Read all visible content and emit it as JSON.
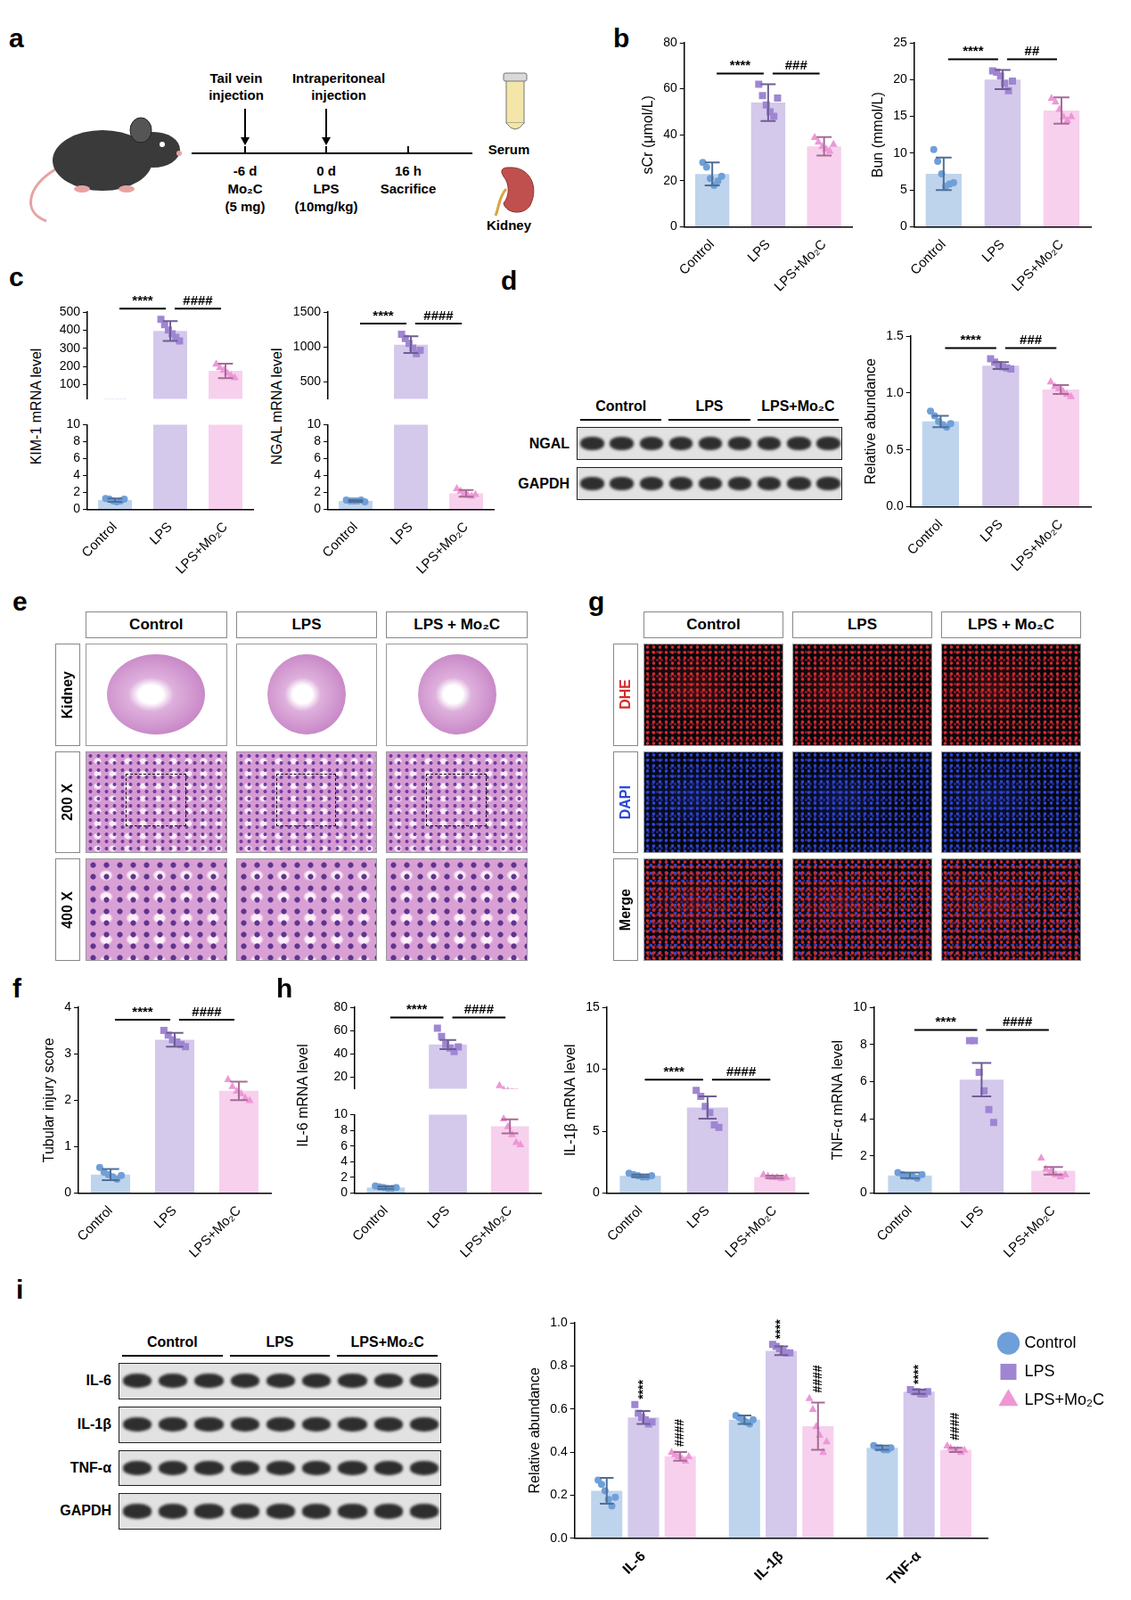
{
  "schematic": {
    "panel": "a",
    "events": [
      {
        "label": "Tail vein injection",
        "time": "-6 d",
        "agent": "Mo₂C",
        "dose": "(5 mg)"
      },
      {
        "label": "Intraperitoneal injection",
        "time": "0 d",
        "agent": "LPS",
        "dose": "(10mg/kg)"
      },
      {
        "time": "16 h",
        "agent": "Sacrifice"
      }
    ],
    "samples": [
      "Serum",
      "Kidney"
    ]
  },
  "blots": [
    {
      "panel": "d",
      "groups": [
        "Control",
        "LPS",
        "LPS+Mo₂C"
      ],
      "lanes_per_group": 3,
      "rows": [
        "NGAL",
        "GAPDH"
      ]
    },
    {
      "panel": "i",
      "groups": [
        "Control",
        "LPS",
        "LPS+Mo₂C"
      ],
      "lanes_per_group": 3,
      "rows": [
        "IL-6",
        "IL-1β",
        "TNF-α",
        "GAPDH"
      ]
    }
  ],
  "histology": {
    "panel": "e",
    "columns": [
      "Control",
      "LPS",
      "LPS + Mo₂C"
    ],
    "rows": [
      "Kidney",
      "200 X",
      "400 X"
    ]
  },
  "fluorescence": {
    "panel": "g",
    "columns": [
      "Control",
      "LPS",
      "LPS + Mo₂C"
    ],
    "rows": [
      {
        "label": "DHE",
        "color": "#d42a2a"
      },
      {
        "label": "DAPI",
        "color": "#2b45d6"
      },
      {
        "label": "Merge",
        "color": "#000000"
      }
    ]
  },
  "chart_data": [
    {
      "type": "bar",
      "panel": "b",
      "y_label": "sCr (μmol/L)",
      "categories": [
        "Control",
        "LPS",
        "LPS+Mo₂C"
      ],
      "values": [
        23,
        54,
        35
      ],
      "errors": [
        5,
        8,
        4
      ],
      "points": [
        [
          28,
          26,
          21,
          18,
          20,
          22
        ],
        [
          62,
          57,
          53,
          50,
          48,
          56
        ],
        [
          39,
          37,
          35,
          34,
          33,
          36
        ]
      ],
      "colors": [
        "#6f9fd8",
        "#9f86d3",
        "#ee97d6"
      ],
      "marker": [
        "circle",
        "square",
        "triangle"
      ],
      "ylim": [
        0,
        80
      ],
      "yticks": [
        0,
        20,
        40,
        60,
        80
      ],
      "grid": false,
      "significance": [
        {
          "from": 0,
          "to": 1,
          "label": "****"
        },
        {
          "from": 1,
          "to": 2,
          "label": "###"
        }
      ]
    },
    {
      "type": "bar",
      "panel": "b",
      "y_label": "Bun (mmol/L)",
      "categories": [
        "Control",
        "LPS",
        "LPS+Mo₂C"
      ],
      "values": [
        7.2,
        20.0,
        15.8
      ],
      "errors": [
        2.2,
        1.3,
        1.8
      ],
      "points": [
        [
          10.5,
          8.9,
          7.2,
          5.5,
          5.8,
          6.0
        ],
        [
          21.2,
          21.0,
          20.5,
          19.5,
          18.5,
          19.8
        ],
        [
          17.5,
          17.0,
          16.0,
          15.0,
          14.5,
          15.0
        ]
      ],
      "colors": [
        "#6f9fd8",
        "#9f86d3",
        "#ee97d6"
      ],
      "marker": [
        "circle",
        "square",
        "triangle"
      ],
      "ylim": [
        0,
        25
      ],
      "yticks": [
        0,
        5,
        10,
        15,
        20,
        25
      ],
      "grid": false,
      "significance": [
        {
          "from": 0,
          "to": 1,
          "label": "****"
        },
        {
          "from": 1,
          "to": 2,
          "label": "##"
        }
      ]
    },
    {
      "type": "bar",
      "panel": "c",
      "y_label": "KIM-1 mRNA level",
      "categories": [
        "Control",
        "LPS",
        "LPS+Mo₂C"
      ],
      "values": [
        1.1,
        395,
        175
      ],
      "errors": [
        0.2,
        55,
        40
      ],
      "points": [
        [
          1.3,
          1.2,
          1.0,
          0.9,
          1.0,
          1.2
        ],
        [
          460,
          430,
          400,
          380,
          360,
          340
        ],
        [
          215,
          195,
          180,
          165,
          150,
          140
        ]
      ],
      "colors": [
        "#6f9fd8",
        "#9f86d3",
        "#ee97d6"
      ],
      "marker": [
        "circle",
        "square",
        "triangle"
      ],
      "y_segments": [
        {
          "ylim": [
            0,
            10
          ],
          "yticks": [
            0,
            2,
            4,
            6,
            8,
            10
          ]
        },
        {
          "ylim": [
            20,
            500
          ],
          "yticks": [
            100,
            200,
            300,
            400,
            500
          ]
        }
      ],
      "grid": false,
      "significance": [
        {
          "from": 0,
          "to": 1,
          "label": "****"
        },
        {
          "from": 1,
          "to": 2,
          "label": "####"
        }
      ]
    },
    {
      "type": "bar",
      "panel": "c",
      "y_label": "NGAL mRNA level",
      "categories": [
        "Control",
        "LPS",
        "LPS+Mo₂C"
      ],
      "values": [
        1.0,
        1030,
        1.9
      ],
      "errors": [
        0.1,
        120,
        0.4
      ],
      "points": [
        [
          1.1,
          1.0,
          1.0,
          1.0,
          1.1,
          0.9
        ],
        [
          1180,
          1120,
          1050,
          980,
          900,
          950
        ],
        [
          2.5,
          2.2,
          1.9,
          1.7,
          1.6,
          1.8
        ]
      ],
      "colors": [
        "#6f9fd8",
        "#9f86d3",
        "#ee97d6"
      ],
      "marker": [
        "circle",
        "square",
        "triangle"
      ],
      "y_segments": [
        {
          "ylim": [
            0,
            10
          ],
          "yticks": [
            0,
            2,
            4,
            6,
            8,
            10
          ]
        },
        {
          "ylim": [
            250,
            1500
          ],
          "yticks": [
            500,
            1000,
            1500
          ]
        }
      ],
      "grid": false,
      "significance": [
        {
          "from": 0,
          "to": 1,
          "label": "****"
        },
        {
          "from": 1,
          "to": 2,
          "label": "####"
        }
      ]
    },
    {
      "type": "bar",
      "panel": "d",
      "y_label": "Relative abundance",
      "categories": [
        "Control",
        "LPS",
        "LPS+Mo₂C"
      ],
      "values": [
        0.75,
        1.24,
        1.03
      ],
      "errors": [
        0.05,
        0.03,
        0.04
      ],
      "points": [
        [
          0.84,
          0.8,
          0.75,
          0.72,
          0.7,
          0.73
        ],
        [
          1.3,
          1.27,
          1.25,
          1.23,
          1.22,
          1.21
        ],
        [
          1.1,
          1.06,
          1.04,
          1.02,
          0.99,
          0.97
        ]
      ],
      "colors": [
        "#6f9fd8",
        "#9f86d3",
        "#ee97d6"
      ],
      "marker": [
        "circle",
        "square",
        "triangle"
      ],
      "ylim": [
        0,
        1.5
      ],
      "yticks": [
        {
          "value": 0,
          "label": "0.0"
        },
        0.5,
        {
          "value": 1,
          "label": "1.0"
        },
        1.5
      ],
      "grid": false,
      "significance": [
        {
          "from": 0,
          "to": 1,
          "label": "****"
        },
        {
          "from": 1,
          "to": 2,
          "label": "###"
        }
      ]
    },
    {
      "type": "bar",
      "panel": "f",
      "y_label": "Tubular injury score",
      "categories": [
        "Control",
        "LPS",
        "LPS+Mo₂C"
      ],
      "values": [
        0.4,
        3.3,
        2.2
      ],
      "errors": [
        0.12,
        0.15,
        0.2
      ],
      "points": [
        [
          0.55,
          0.45,
          0.4,
          0.35,
          0.3,
          0.38
        ],
        [
          3.5,
          3.4,
          3.3,
          3.25,
          3.2,
          3.15
        ],
        [
          2.45,
          2.3,
          2.2,
          2.15,
          2.05,
          2.0
        ]
      ],
      "colors": [
        "#6f9fd8",
        "#9f86d3",
        "#ee97d6"
      ],
      "marker": [
        "circle",
        "square",
        "triangle"
      ],
      "ylim": [
        0,
        4
      ],
      "yticks": [
        0,
        1,
        2,
        3,
        4
      ],
      "grid": false,
      "significance": [
        {
          "from": 0,
          "to": 1,
          "label": "****"
        },
        {
          "from": 1,
          "to": 2,
          "label": "####"
        }
      ]
    },
    {
      "type": "bar",
      "panel": "h",
      "y_label": "IL-6 mRNA level",
      "categories": [
        "Control",
        "LPS",
        "LPS+Mo₂C"
      ],
      "values": [
        0.7,
        48,
        8.5
      ],
      "errors": [
        0.15,
        4,
        0.9
      ],
      "points": [
        [
          0.9,
          0.8,
          0.7,
          0.6,
          0.6,
          0.7
        ],
        [
          62,
          55,
          48,
          45,
          42,
          46
        ],
        [
          13,
          9.5,
          8.5,
          7.5,
          6.5,
          6.2
        ]
      ],
      "colors": [
        "#6f9fd8",
        "#9f86d3",
        "#ee97d6"
      ],
      "marker": [
        "circle",
        "square",
        "triangle"
      ],
      "y_segments": [
        {
          "ylim": [
            0,
            10
          ],
          "yticks": [
            0,
            2,
            4,
            6,
            8,
            10
          ]
        },
        {
          "ylim": [
            10,
            80
          ],
          "yticks": [
            20,
            40,
            60,
            80
          ]
        }
      ],
      "grid": false,
      "significance": [
        {
          "from": 0,
          "to": 1,
          "label": "****"
        },
        {
          "from": 1,
          "to": 2,
          "label": "####"
        }
      ]
    },
    {
      "type": "bar",
      "panel": "h",
      "y_label": "IL-1β mRNA level",
      "categories": [
        "Control",
        "LPS",
        "LPS+Mo₂C"
      ],
      "values": [
        1.4,
        6.9,
        1.3
      ],
      "errors": [
        0.1,
        0.9,
        0.1
      ],
      "points": [
        [
          1.6,
          1.5,
          1.4,
          1.3,
          1.3,
          1.4
        ],
        [
          8.3,
          7.8,
          7.0,
          6.5,
          5.5,
          5.3
        ],
        [
          1.5,
          1.4,
          1.3,
          1.3,
          1.2,
          1.3
        ]
      ],
      "colors": [
        "#6f9fd8",
        "#9f86d3",
        "#ee97d6"
      ],
      "marker": [
        "circle",
        "square",
        "triangle"
      ],
      "ylim": [
        0,
        15
      ],
      "yticks": [
        0,
        5,
        10,
        15
      ],
      "grid": false,
      "significance": [
        {
          "from": 0,
          "to": 1,
          "label": "****"
        },
        {
          "from": 1,
          "to": 2,
          "label": "####"
        }
      ]
    },
    {
      "type": "bar",
      "panel": "h",
      "y_label": "TNF-α mRNA level",
      "categories": [
        "Control",
        "LPS",
        "LPS+Mo₂C"
      ],
      "values": [
        0.95,
        6.1,
        1.2
      ],
      "errors": [
        0.15,
        0.9,
        0.2
      ],
      "points": [
        [
          1.1,
          1.0,
          0.9,
          0.9,
          0.8,
          1.0
        ],
        [
          8.2,
          8.2,
          6.5,
          5.5,
          4.5,
          3.8
        ],
        [
          1.9,
          1.3,
          1.2,
          1.0,
          0.9,
          1.0
        ]
      ],
      "colors": [
        "#6f9fd8",
        "#9f86d3",
        "#ee97d6"
      ],
      "marker": [
        "circle",
        "square",
        "triangle"
      ],
      "ylim": [
        0,
        10
      ],
      "yticks": [
        0,
        2,
        4,
        6,
        8,
        10
      ],
      "grid": false,
      "significance": [
        {
          "from": 0,
          "to": 1,
          "label": "****"
        },
        {
          "from": 1,
          "to": 2,
          "label": "####"
        }
      ]
    },
    {
      "type": "bar",
      "panel": "i",
      "y_label": "Relative abundance",
      "categories": [
        "IL-6",
        "IL-1β",
        "TNF-α"
      ],
      "series": [
        {
          "name": "Control",
          "color": "#6f9fd8",
          "marker": "circle",
          "values": [
            0.22,
            0.55,
            0.42
          ],
          "errors": [
            0.06,
            0.02,
            0.01
          ],
          "points": [
            [
              0.27,
              0.25,
              0.22,
              0.18,
              0.15,
              0.19
            ],
            [
              0.57,
              0.56,
              0.55,
              0.54,
              0.53,
              0.55
            ],
            [
              0.43,
              0.42,
              0.42,
              0.41,
              0.41,
              0.42
            ]
          ]
        },
        {
          "name": "LPS",
          "color": "#9f86d3",
          "marker": "square",
          "values": [
            0.56,
            0.87,
            0.68
          ],
          "errors": [
            0.03,
            0.02,
            0.01
          ],
          "points": [
            [
              0.62,
              0.58,
              0.56,
              0.55,
              0.53,
              0.54
            ],
            [
              0.9,
              0.89,
              0.88,
              0.87,
              0.86,
              0.86
            ],
            [
              0.69,
              0.68,
              0.68,
              0.67,
              0.67,
              0.68
            ]
          ],
          "significance": [
            "****",
            "****",
            "****"
          ]
        },
        {
          "name": "LPS+Mo₂C",
          "color": "#ee97d6",
          "marker": "triangle",
          "values": [
            0.38,
            0.52,
            0.41
          ],
          "errors": [
            0.02,
            0.11,
            0.01
          ],
          "points": [
            [
              0.4,
              0.39,
              0.38,
              0.37,
              0.36,
              0.38
            ],
            [
              0.65,
              0.6,
              0.52,
              0.48,
              0.4,
              0.45
            ],
            [
              0.43,
              0.42,
              0.41,
              0.41,
              0.4,
              0.41
            ]
          ],
          "significance": [
            "####",
            "####",
            "####"
          ]
        }
      ],
      "ylim": [
        0,
        1
      ],
      "yticks": [
        {
          "value": 0,
          "label": "0.0"
        },
        0.2,
        0.4,
        0.6,
        0.8,
        {
          "value": 1,
          "label": "1.0"
        }
      ],
      "grid": false,
      "legend": "right"
    }
  ]
}
